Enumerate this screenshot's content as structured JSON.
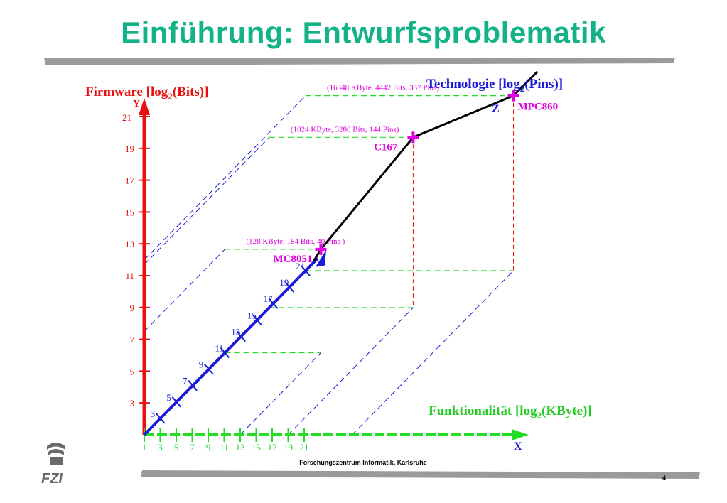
{
  "title": "Einführung: Entwurfsproblematik",
  "footer": {
    "institute": "Forschungszentrum Informatik, Karlsruhe",
    "page": "4",
    "logo_text": "FZI"
  },
  "colors": {
    "title": "#14b287",
    "firmware": "#e81010",
    "functionality": "#22dd22",
    "technology": "#1a1ad8",
    "chips": "#e000e0",
    "trend": "#000000"
  },
  "chart_data": {
    "type": "diagram",
    "axes": {
      "y": {
        "title_main": "Firmware [log",
        "title_sub": "2",
        "title_end": "(Bits)]",
        "letter": "Y",
        "ticks": [
          "3",
          "5",
          "7",
          "9",
          "11",
          "13",
          "15",
          "17",
          "19",
          "21"
        ]
      },
      "x": {
        "title_main": "Funktionalität [log",
        "title_sub": "2",
        "title_end": "(KByte)]",
        "letter": "X",
        "ticks": [
          "1",
          "3",
          "5",
          "7",
          "9",
          "11",
          "13",
          "15",
          "17",
          "19",
          "21"
        ]
      },
      "z": {
        "title_main": "Technologie [log",
        "title_sub": "2",
        "title_end": "(Pins)]",
        "letter": "Z",
        "ticks": [
          "3",
          "5",
          "7",
          "9",
          "11",
          "13",
          "15",
          "17",
          "19",
          "21"
        ]
      }
    },
    "chips": [
      {
        "name": "MC8051",
        "annotation": "(128 KByte, 184 Bits, 40 Pins )",
        "x": 7,
        "y": 7.5,
        "z": 11
      },
      {
        "name": "C167",
        "annotation": "(1024 KByte, 3280 Bits, 144 Pins)",
        "x": 10,
        "y": 11.7,
        "z": 16.5
      },
      {
        "name": "MPC860",
        "annotation": "(16348 KByte, 4442 Bits, 357 Pins)",
        "x": 14,
        "y": 12,
        "z": 21
      }
    ]
  }
}
